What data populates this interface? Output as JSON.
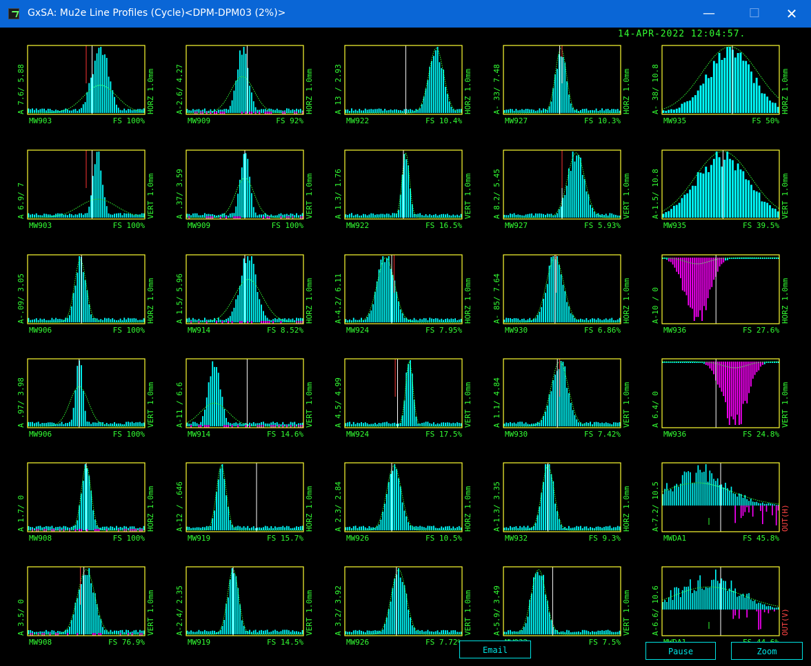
{
  "window": {
    "title": "GxSA: Mu2e Line Profiles (Cycle)<DPM-DPM03 (2%)>",
    "min_glyph": "—",
    "max_glyph": "☐",
    "close_glyph": "✕"
  },
  "timestamp": "14-APR-2022 12:04:57.",
  "colors": {
    "frame": "#ffff33",
    "text": "#33ff33",
    "bars": "#00ffff",
    "negative_bars": "#ff00ff",
    "fit": "#33ff33",
    "center_line": "#ffffff",
    "marker_line": "#ff3333"
  },
  "panels": [
    {
      "name": "MW903",
      "left": "A 7.6/ 5.88",
      "right": "HORZ 1.0mm",
      "fs": "FS  100%",
      "mu": 0.62,
      "sigma": 0.07,
      "pos": 0.55,
      "fitA": 0.42,
      "fitS": 0.14,
      "white": 0.55,
      "red": 0.5
    },
    {
      "name": "MW909",
      "left": "A-2.6/ 4.27",
      "right": "HORZ 1.0mm",
      "fs": "FS   92%",
      "mu": 0.48,
      "sigma": 0.05,
      "pos": 0.5,
      "fitA": 0.55,
      "fitS": 0.1,
      "white": 0.52,
      "red": 0,
      "neg": true
    },
    {
      "name": "MW922",
      "left": "A 13 / 2.93",
      "right": "HORZ 1.0mm",
      "fs": "FS 10.4%",
      "mu": 0.78,
      "sigma": 0.06,
      "pos": 0.55,
      "white": 0.52
    },
    {
      "name": "MW927",
      "left": "A- 33/ 7.48",
      "right": "HORZ 1.0mm",
      "fs": "FS 10.3%",
      "mu": 0.49,
      "sigma": 0.045,
      "pos": 0.52,
      "white": 0.48,
      "red": 0.5
    },
    {
      "name": "MW935",
      "left": "A- 38/ 10.8",
      "right": "HORZ 1.0mm",
      "fs": "FS   50%",
      "mu": 0.58,
      "sigma": 0.2,
      "pos": 0.55,
      "wide": true,
      "fitA": 1.0,
      "fitS": 0.24,
      "white": 0.6
    },
    {
      "name": "MW903",
      "left": "A 6.9/ 7",
      "right": "VERT 1.0mm",
      "fs": "FS  100%",
      "mu": 0.6,
      "sigma": 0.04,
      "pos": 0.55,
      "fitA": 0.28,
      "fitS": 0.16,
      "white": 0.55,
      "red": 0.5
    },
    {
      "name": "MW909",
      "left": "A .37/ 3.59",
      "right": "VERT 1.0mm",
      "fs": "FS  100%",
      "mu": 0.5,
      "sigma": 0.04,
      "pos": 0.55,
      "fitA": 0.6,
      "fitS": 0.08,
      "white": 0.5,
      "neg": true
    },
    {
      "name": "MW922",
      "left": "A 1.3/ 1.76",
      "right": "VERT 1.0mm",
      "fs": "FS 16.5%",
      "mu": 0.52,
      "sigma": 0.03,
      "pos": 0.55,
      "white": 0.5
    },
    {
      "name": "MW927",
      "left": "A 8.2/ 5.45",
      "right": "VERT 1.0mm",
      "fs": "FS 5.93%",
      "mu": 0.62,
      "sigma": 0.07,
      "pos": 0.55,
      "white": 0.5,
      "red": 0.5
    },
    {
      "name": "MW935",
      "left": "A-1.5/ 10.8",
      "right": "VERT 1.0mm",
      "fs": "FS 39.5%",
      "mu": 0.52,
      "sigma": 0.22,
      "pos": 0.55,
      "wide": true,
      "fitA": 1.0,
      "fitS": 0.24,
      "white": 0.52
    },
    {
      "name": "MW906",
      "left": "A-.09/ 3.05",
      "right": "HORZ 1.0mm",
      "fs": "FS  100%",
      "mu": 0.45,
      "sigma": 0.045,
      "pos": 0.55,
      "fitA": 0.95,
      "fitS": 0.05,
      "white": 0.46
    },
    {
      "name": "MW914",
      "left": "A 1.5/ 5.96",
      "right": "HORZ 1.0mm",
      "fs": "FS 8.52%",
      "mu": 0.53,
      "sigma": 0.07,
      "pos": 0.55,
      "fitA": 0.65,
      "fitS": 0.12,
      "white": 0.5,
      "neg": true
    },
    {
      "name": "MW924",
      "left": "A-4.2/ 6.11",
      "right": "HORZ 1.0mm",
      "fs": "FS 7.95%",
      "mu": 0.35,
      "sigma": 0.07,
      "pos": 0.55,
      "white": 0.4,
      "red": 0.42
    },
    {
      "name": "MW930",
      "left": "A- 85/ 7.64",
      "right": "HORZ 1.0mm",
      "fs": "FS 6.86%",
      "mu": 0.44,
      "sigma": 0.07,
      "pos": 0.55,
      "white": 0.44,
      "red": 0.45
    },
    {
      "name": "MW936",
      "left": "A-10 / 0",
      "right": "HORZ 1.0mm",
      "fs": "FS 27.6%",
      "mu": 0.3,
      "sigma": 0.1,
      "pos": 0.04,
      "flip": true,
      "white": 0.46
    },
    {
      "name": "MW906",
      "left": "A .97/ 3.98",
      "right": "VERT 1.0mm",
      "fs": "FS  100%",
      "mu": 0.44,
      "sigma": 0.03,
      "pos": 0.55,
      "fitA": 0.6,
      "fitS": 0.08,
      "white": 0.44
    },
    {
      "name": "MW914",
      "left": "A-11 / 6.6",
      "right": "VERT 1.0mm",
      "fs": "FS 14.6%",
      "mu": 0.24,
      "sigma": 0.05,
      "pos": 0.55,
      "fitA": 0.35,
      "fitS": 0.12,
      "white": 0.52,
      "neg": true
    },
    {
      "name": "MW924",
      "left": "A 4.5/ 4.99",
      "right": "VERT 1.0mm",
      "fs": "FS 17.5%",
      "mu": 0.55,
      "sigma": 0.03,
      "pos": 0.55,
      "white": 0.45,
      "red": 0.43
    },
    {
      "name": "MW930",
      "left": "A 1.1/ 4.84",
      "right": "VERT 1.0mm",
      "fs": "FS 7.42%",
      "mu": 0.48,
      "sigma": 0.07,
      "pos": 0.55,
      "white": 0.46,
      "red": 0.48
    },
    {
      "name": "MW936",
      "left": "A 6.4/ 0",
      "right": "VERT 1.0mm",
      "fs": "FS 24.8%",
      "mu": 0.62,
      "sigma": 0.1,
      "pos": 0.04,
      "flip": true,
      "white": 0.46
    },
    {
      "name": "MW908",
      "left": "A 1.7/ 0",
      "right": "HORZ 1.0mm",
      "fs": "FS  100%",
      "mu": 0.5,
      "sigma": 0.04,
      "pos": 0.55,
      "white": 0.5,
      "neg": true
    },
    {
      "name": "MW919",
      "left": "A-12 / .646",
      "right": "HORZ 1.0mm",
      "fs": "FS 15.7%",
      "mu": 0.3,
      "sigma": 0.04,
      "pos": 0.55,
      "white": 0.6
    },
    {
      "name": "MW926",
      "left": "A 2.3/ 2.84",
      "right": "HORZ 1.0mm",
      "fs": "FS 10.5%",
      "mu": 0.42,
      "sigma": 0.06,
      "pos": 0.55,
      "white": 0.4
    },
    {
      "name": "MW932",
      "left": "A-1.3/ 3.35",
      "right": "HORZ 1.0mm",
      "fs": "FS  9.3%",
      "mu": 0.38,
      "sigma": 0.05,
      "pos": 0.55,
      "white": 0.38
    },
    {
      "name": "MWDA1",
      "left": "A-7.2/ 10.5",
      "right": "OUT(H)",
      "fs": "FS 45.8%",
      "mu": 0.3,
      "sigma": 0.25,
      "pos": 0.55,
      "mixed": true,
      "fitA": 0.55,
      "fitS": 0.3,
      "white": 0.5,
      "red_label": true
    },
    {
      "name": "MW908",
      "left": "A 3.5/ 0",
      "right": "VERT 1.0mm",
      "fs": "FS 76.9%",
      "mu": 0.5,
      "sigma": 0.07,
      "pos": 0.55,
      "white": 0.48,
      "red": 0.45,
      "neg": true
    },
    {
      "name": "MW919",
      "left": "A-2.4/ 2.35",
      "right": "VERT 1.0mm",
      "fs": "FS 14.5%",
      "mu": 0.4,
      "sigma": 0.045,
      "pos": 0.55,
      "white": 0.4
    },
    {
      "name": "MW926",
      "left": "A 3.2/ 3.92",
      "right": "VERT 1.0mm",
      "fs": "FS 7.72%",
      "mu": 0.46,
      "sigma": 0.06,
      "pos": 0.55,
      "white": 0.44
    },
    {
      "name": "MW932",
      "left": "A-5.9/ 3.49",
      "right": "VERT 1.0mm",
      "fs": "FS  7.5%",
      "mu": 0.3,
      "sigma": 0.06,
      "pos": 0.55,
      "white": 0.42
    },
    {
      "name": "MWDA1",
      "left": "A-6.6/ 10.6",
      "right": "OUT(V)",
      "fs": "FS 44.6%",
      "mu": 0.4,
      "sigma": 0.25,
      "pos": 0.55,
      "mixed": true,
      "fitA": 0.55,
      "fitS": 0.3,
      "white": 0.5,
      "red_label": true
    }
  ],
  "buttons": {
    "email": "Email",
    "pause": "Pause",
    "zoom": "Zoom"
  }
}
